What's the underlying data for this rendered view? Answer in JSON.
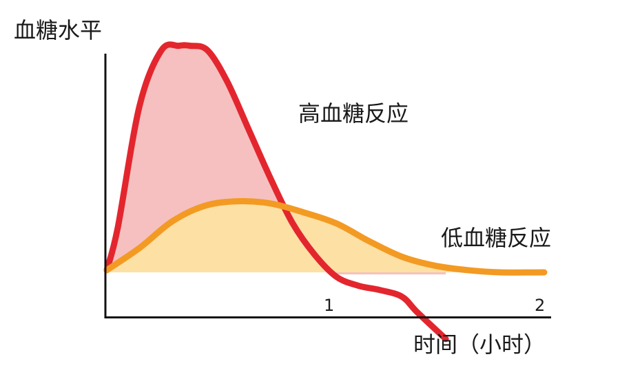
{
  "chart_data": {
    "type": "area",
    "ylabel": "血糖水平",
    "xlabel": "时间（小时）",
    "xlim": [
      0,
      2
    ],
    "x_ticks": [
      "1",
      "2"
    ],
    "y_ticks": [],
    "grid": false,
    "series": [
      {
        "name": "高血糖反应",
        "color": "#e3262e",
        "fill": "#f6c0c0",
        "x": [
          0,
          0.05,
          0.15,
          0.25,
          0.33,
          0.38,
          0.46,
          0.55,
          0.65,
          0.75,
          0.85,
          0.95,
          1.05,
          1.15,
          1.25,
          1.35,
          1.42,
          1.55
        ],
        "y": [
          0.01,
          0.2,
          0.75,
          1.0,
          1.02,
          1.02,
          1.0,
          0.86,
          0.64,
          0.42,
          0.22,
          0.08,
          -0.02,
          -0.06,
          -0.08,
          -0.11,
          -0.18,
          -0.3
        ]
      },
      {
        "name": "低血糖反应",
        "color": "#f39a23",
        "fill": "#fde0a4",
        "x": [
          0,
          0.15,
          0.3,
          0.45,
          0.6,
          0.75,
          0.9,
          1.05,
          1.2,
          1.35,
          1.5,
          1.65,
          1.8,
          2.0
        ],
        "y": [
          0.01,
          0.11,
          0.23,
          0.3,
          0.32,
          0.31,
          0.27,
          0.22,
          0.14,
          0.07,
          0.03,
          0.01,
          0.0,
          0.0
        ]
      }
    ]
  }
}
